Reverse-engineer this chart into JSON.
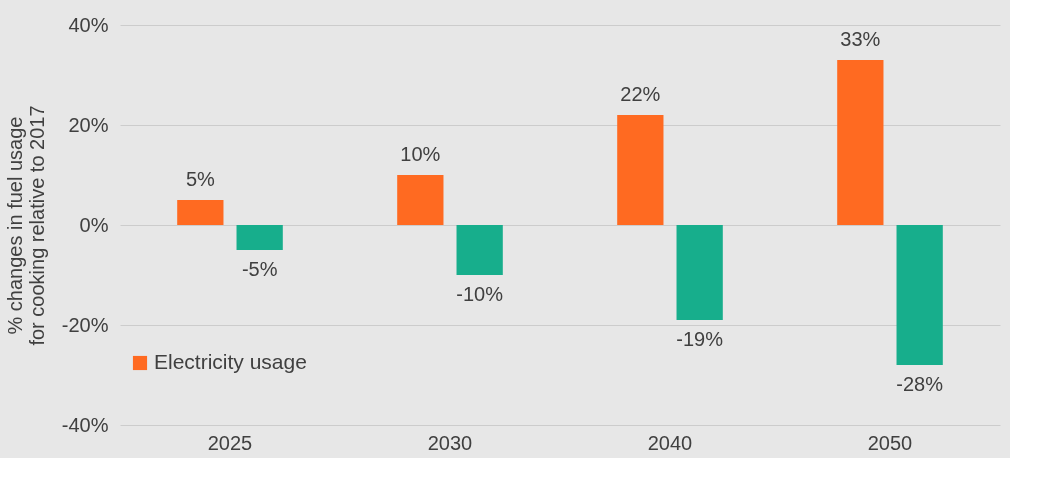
{
  "chart_data": {
    "type": "bar",
    "ylabel": "% changes in fuel usage for cooking relative to 2017",
    "categories": [
      "2025",
      "2030",
      "2040",
      "2050"
    ],
    "series": [
      {
        "name": "Electricity usage",
        "color": "#ff6a21",
        "values": [
          5,
          10,
          22,
          33
        ],
        "value_labels": [
          "5%",
          "10%",
          "22%",
          "33%"
        ]
      },
      {
        "color": "#17ae8c",
        "values": [
          -5,
          -10,
          -19,
          -28
        ],
        "value_labels": [
          "-5%",
          "-10%",
          "-19%",
          "-28%"
        ]
      }
    ],
    "ylim": [
      -40,
      40
    ],
    "yticks": [
      {
        "value": -40,
        "label": "-40%"
      },
      {
        "value": -20,
        "label": "-20%"
      },
      {
        "value": 0,
        "label": "0%"
      },
      {
        "value": 20,
        "label": "20%"
      },
      {
        "value": 40,
        "label": "40%"
      }
    ],
    "grid": "y",
    "legend": "bottom left"
  }
}
